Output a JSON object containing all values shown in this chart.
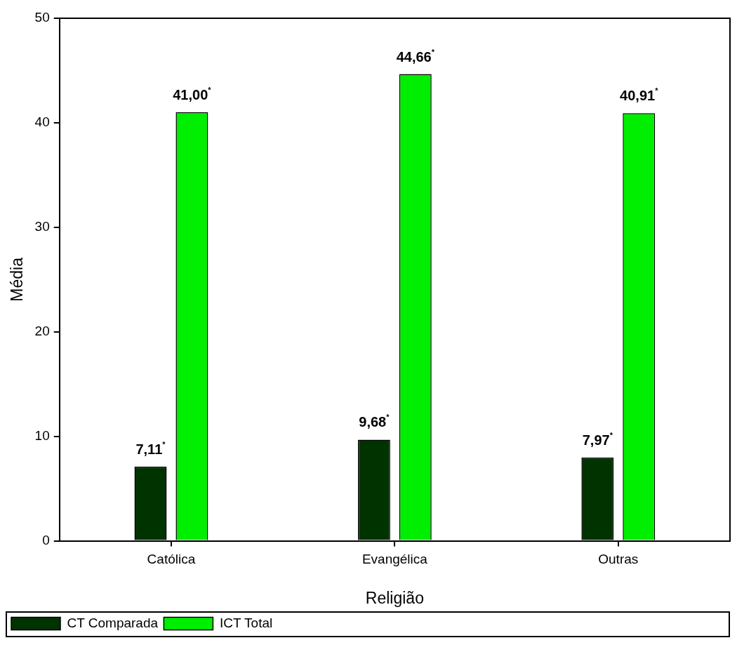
{
  "chart_data": {
    "type": "bar",
    "xlabel": "Religião",
    "ylabel": "Média",
    "categories": [
      "Católica",
      "Evangélica",
      "Outras"
    ],
    "series": [
      {
        "name": "CT Comparada",
        "color": "#003300",
        "values": [
          7.11,
          9.68,
          7.97
        ],
        "value_labels": [
          "7,11$^{*}$",
          "9,68$^{*}$",
          "7,97$^{*}$"
        ]
      },
      {
        "name": "ICT Total",
        "color": "#00ee00",
        "values": [
          41.0,
          44.66,
          40.91
        ],
        "value_labels": [
          "41,00$^{*}$",
          "44,66$^{*}$",
          "40,91$^{*}$"
        ]
      }
    ],
    "ylim": [
      0,
      50
    ],
    "yticks": [
      0,
      10,
      20,
      30,
      40,
      50
    ],
    "grid": false,
    "legend": "bottom left"
  }
}
